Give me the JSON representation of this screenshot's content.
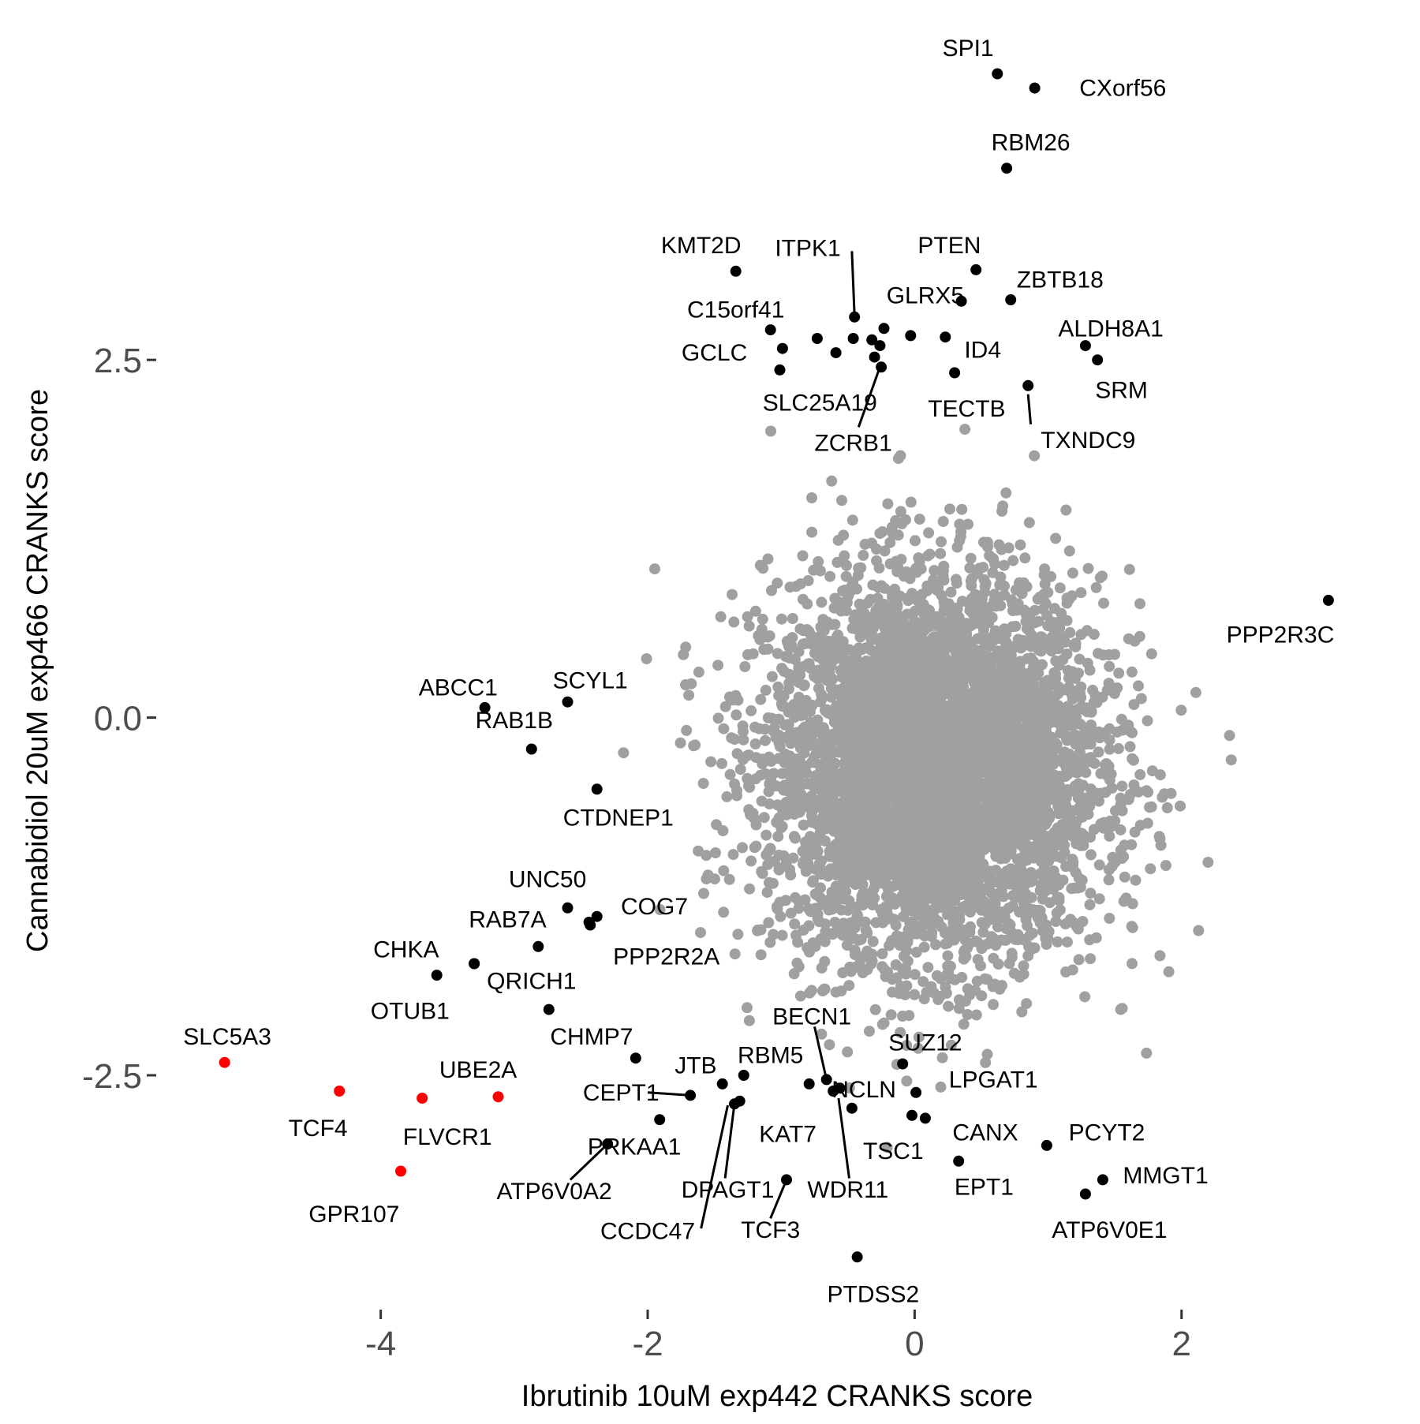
{
  "chart_data": {
    "type": "scatter",
    "xlabel": "Ibrutinib 10uM exp442 CRANKS score",
    "ylabel": "Cannabidiol 20uM exp466 CRANKS score",
    "xlim": [
      -5.7,
      3.55
    ],
    "ylim": [
      -4.11,
      4.85
    ],
    "x_ticks": [
      -4,
      -2,
      0,
      2
    ],
    "x_tick_labels": [
      "-4",
      "-2",
      "0",
      "2"
    ],
    "y_ticks": [
      -2.5,
      0.0,
      2.5
    ],
    "y_tick_labels": [
      "-2.5",
      "0.0",
      "2.5"
    ],
    "grid": false,
    "legend": "none",
    "colors": {
      "background": "#a0a0a0",
      "highlight": "#000000",
      "negative_hit": "#ff0000"
    },
    "background_cloud": {
      "description_x_center": 0.15,
      "description_y_center": -0.35,
      "note": "thousands of gray genes"
    },
    "points": [
      {
        "label": "SPI1",
        "x": 0.62,
        "y": 4.5,
        "color": "black"
      },
      {
        "label": "CXorf56",
        "x": 0.9,
        "y": 4.4,
        "color": "black"
      },
      {
        "label": "RBM26",
        "x": 0.69,
        "y": 3.84,
        "color": "black"
      },
      {
        "label": "KMT2D",
        "x": -1.34,
        "y": 3.12,
        "color": "black"
      },
      {
        "label": "PTEN",
        "x": 0.46,
        "y": 3.13,
        "color": "black"
      },
      {
        "label": "ZBTB18",
        "x": 0.72,
        "y": 2.92,
        "color": "black"
      },
      {
        "label": "GLRX5",
        "x": 0.35,
        "y": 2.91,
        "color": "black"
      },
      {
        "label": "ITPK1",
        "x": -0.45,
        "y": 2.8,
        "color": "black"
      },
      {
        "label": "C15orf41",
        "x": -1.08,
        "y": 2.71,
        "color": "black"
      },
      {
        "label": "GCLC",
        "x": -0.99,
        "y": 2.58,
        "color": "black"
      },
      {
        "label": "ALDH8A1",
        "x": 1.28,
        "y": 2.6,
        "color": "black"
      },
      {
        "label": "SRM",
        "x": 1.37,
        "y": 2.5,
        "color": "black"
      },
      {
        "label": "ID4",
        "x": 0.23,
        "y": 2.66,
        "color": "black"
      },
      {
        "label": "TECTB",
        "x": 0.3,
        "y": 2.41,
        "color": "black"
      },
      {
        "label": "TXNDC9",
        "x": 0.85,
        "y": 2.32,
        "color": "black"
      },
      {
        "label": "SLC25A19",
        "x": -0.25,
        "y": 2.45,
        "color": "black"
      },
      {
        "label": "ZCRB1",
        "x": -0.3,
        "y": 2.52,
        "color": "black"
      },
      {
        "label": "",
        "x": -1.01,
        "y": 2.43,
        "color": "black"
      },
      {
        "label": "",
        "x": -0.73,
        "y": 2.65,
        "color": "black"
      },
      {
        "label": "",
        "x": -0.59,
        "y": 2.55,
        "color": "black"
      },
      {
        "label": "",
        "x": -0.46,
        "y": 2.65,
        "color": "black"
      },
      {
        "label": "",
        "x": -0.23,
        "y": 2.72,
        "color": "black"
      },
      {
        "label": "",
        "x": -0.32,
        "y": 2.64,
        "color": "black"
      },
      {
        "label": "",
        "x": -0.03,
        "y": 2.67,
        "color": "black"
      },
      {
        "label": "",
        "x": -0.26,
        "y": 2.6,
        "color": "black"
      },
      {
        "label": "PPP2R3C",
        "x": 3.1,
        "y": 0.82,
        "color": "black"
      },
      {
        "label": "ABCC1",
        "x": -3.22,
        "y": 0.07,
        "color": "black"
      },
      {
        "label": "SCYL1",
        "x": -2.6,
        "y": 0.11,
        "color": "black"
      },
      {
        "label": "RAB1B",
        "x": -2.87,
        "y": -0.22,
        "color": "black"
      },
      {
        "label": "CTDNEP1",
        "x": -2.38,
        "y": -0.5,
        "color": "black"
      },
      {
        "label": "UNC50",
        "x": -2.6,
        "y": -1.33,
        "color": "black"
      },
      {
        "label": "COG7",
        "x": -2.38,
        "y": -1.39,
        "color": "black"
      },
      {
        "label": "",
        "x": -2.44,
        "y": -1.43,
        "color": "black"
      },
      {
        "label": "RAB7A",
        "x": -2.82,
        "y": -1.6,
        "color": "black"
      },
      {
        "label": "PPP2R2A",
        "x": -2.43,
        "y": -1.45,
        "color": "black"
      },
      {
        "label": "CHKA",
        "x": -3.3,
        "y": -1.72,
        "color": "black"
      },
      {
        "label": "QRICH1",
        "x": -3.3,
        "y": -1.72,
        "color": "black"
      },
      {
        "label": "OTUB1",
        "x": -3.58,
        "y": -1.8,
        "color": "black"
      },
      {
        "label": "CHMP7",
        "x": -2.74,
        "y": -2.04,
        "color": "black"
      },
      {
        "label": "SLC5A3",
        "x": -5.17,
        "y": -2.41,
        "color": "red"
      },
      {
        "label": "TCF4",
        "x": -4.31,
        "y": -2.61,
        "color": "red"
      },
      {
        "label": "FLVCR1",
        "x": -3.69,
        "y": -2.66,
        "color": "red"
      },
      {
        "label": "UBE2A",
        "x": -3.12,
        "y": -2.65,
        "color": "red"
      },
      {
        "label": "GPR107",
        "x": -3.85,
        "y": -3.17,
        "color": "red"
      },
      {
        "label": "JTB",
        "x": -2.09,
        "y": -2.38,
        "color": "black"
      },
      {
        "label": "CEPT1",
        "x": -1.68,
        "y": -2.64,
        "color": "black"
      },
      {
        "label": "PRKAA1",
        "x": -1.91,
        "y": -2.81,
        "color": "black"
      },
      {
        "label": "ATP6V0A2",
        "x": -2.3,
        "y": -2.98,
        "color": "black"
      },
      {
        "label": "RBM5",
        "x": -1.28,
        "y": -2.5,
        "color": "black"
      },
      {
        "label": "",
        "x": -1.44,
        "y": -2.56,
        "color": "black"
      },
      {
        "label": "DPAGT1",
        "x": -1.35,
        "y": -2.7,
        "color": "black"
      },
      {
        "label": "CCDC47",
        "x": -1.31,
        "y": -2.68,
        "color": "black"
      },
      {
        "label": "KAT7",
        "x": -0.79,
        "y": -2.56,
        "color": "black"
      },
      {
        "label": "TCF3",
        "x": -0.96,
        "y": -3.23,
        "color": "black"
      },
      {
        "label": "BECN1",
        "x": -0.66,
        "y": -2.53,
        "color": "black"
      },
      {
        "label": "NCLN",
        "x": -0.56,
        "y": -2.59,
        "color": "black"
      },
      {
        "label": "WDR11",
        "x": -0.61,
        "y": -2.61,
        "color": "black"
      },
      {
        "label": "TSC1",
        "x": -0.47,
        "y": -2.73,
        "color": "black"
      },
      {
        "label": "SUZ12",
        "x": -0.09,
        "y": -2.42,
        "color": "black"
      },
      {
        "label": "LPGAT1",
        "x": 0.01,
        "y": -2.62,
        "color": "black"
      },
      {
        "label": "",
        "x": -0.02,
        "y": -2.78,
        "color": "black"
      },
      {
        "label": "CANX",
        "x": 0.08,
        "y": -2.8,
        "color": "black"
      },
      {
        "label": "EPT1",
        "x": 0.33,
        "y": -3.1,
        "color": "black"
      },
      {
        "label": "PCYT2",
        "x": 0.99,
        "y": -2.99,
        "color": "black"
      },
      {
        "label": "MMGT1",
        "x": 1.41,
        "y": -3.23,
        "color": "black"
      },
      {
        "label": "ATP6V0E1",
        "x": 1.28,
        "y": -3.33,
        "color": "black"
      },
      {
        "label": "PTDSS2",
        "x": -0.43,
        "y": -3.77,
        "color": "black"
      }
    ]
  },
  "labels": [
    {
      "text": "SPI1",
      "x": 0.4,
      "y": 4.68,
      "anchor": "middle"
    },
    {
      "text": "CXorf56",
      "x": 1.56,
      "y": 4.4,
      "anchor": "middle"
    },
    {
      "text": "RBM26",
      "x": 0.87,
      "y": 4.02,
      "anchor": "middle"
    },
    {
      "text": "KMT2D",
      "x": -1.6,
      "y": 3.3,
      "anchor": "middle"
    },
    {
      "text": "ITPK1",
      "x": -0.8,
      "y": 3.28,
      "anchor": "middle"
    },
    {
      "text": "PTEN",
      "x": 0.26,
      "y": 3.3,
      "anchor": "middle"
    },
    {
      "text": "ZBTB18",
      "x": 1.09,
      "y": 3.06,
      "anchor": "middle"
    },
    {
      "text": "GLRX5",
      "x": 0.08,
      "y": 2.95,
      "anchor": "middle"
    },
    {
      "text": "C15orf41",
      "x": -1.34,
      "y": 2.85,
      "anchor": "middle"
    },
    {
      "text": "ALDH8A1",
      "x": 1.47,
      "y": 2.72,
      "anchor": "middle"
    },
    {
      "text": "GCLC",
      "x": -1.5,
      "y": 2.55,
      "anchor": "middle"
    },
    {
      "text": "ID4",
      "x": 0.51,
      "y": 2.57,
      "anchor": "middle"
    },
    {
      "text": "SRM",
      "x": 1.55,
      "y": 2.29,
      "anchor": "middle"
    },
    {
      "text": "SLC25A19",
      "x": -0.71,
      "y": 2.2,
      "anchor": "middle"
    },
    {
      "text": "TECTB",
      "x": 0.39,
      "y": 2.16,
      "anchor": "middle"
    },
    {
      "text": "TXNDC9",
      "x": 1.3,
      "y": 1.94,
      "anchor": "middle"
    },
    {
      "text": "ZCRB1",
      "x": -0.46,
      "y": 1.92,
      "anchor": "middle"
    },
    {
      "text": "PPP2R3C",
      "x": 2.74,
      "y": 0.58,
      "anchor": "middle"
    },
    {
      "text": "ABCC1",
      "x": -3.42,
      "y": 0.21,
      "anchor": "middle"
    },
    {
      "text": "SCYL1",
      "x": -2.43,
      "y": 0.26,
      "anchor": "middle"
    },
    {
      "text": "RAB1B",
      "x": -3.0,
      "y": -0.02,
      "anchor": "middle"
    },
    {
      "text": "CTDNEP1",
      "x": -2.22,
      "y": -0.7,
      "anchor": "middle"
    },
    {
      "text": "UNC50",
      "x": -2.75,
      "y": -1.13,
      "anchor": "middle"
    },
    {
      "text": "COG7",
      "x": -1.95,
      "y": -1.32,
      "anchor": "middle"
    },
    {
      "text": "RAB7A",
      "x": -3.05,
      "y": -1.41,
      "anchor": "middle"
    },
    {
      "text": "PPP2R2A",
      "x": -1.86,
      "y": -1.67,
      "anchor": "middle"
    },
    {
      "text": "CHKA",
      "x": -3.81,
      "y": -1.62,
      "anchor": "middle"
    },
    {
      "text": "QRICH1",
      "x": -2.87,
      "y": -1.84,
      "anchor": "middle"
    },
    {
      "text": "OTUB1",
      "x": -3.78,
      "y": -2.05,
      "anchor": "middle"
    },
    {
      "text": "CHMP7",
      "x": -2.42,
      "y": -2.23,
      "anchor": "middle"
    },
    {
      "text": "SLC5A3",
      "x": -5.15,
      "y": -2.23,
      "anchor": "middle"
    },
    {
      "text": "UBE2A",
      "x": -3.27,
      "y": -2.46,
      "anchor": "middle"
    },
    {
      "text": "TCF4",
      "x": -4.47,
      "y": -2.87,
      "anchor": "middle"
    },
    {
      "text": "FLVCR1",
      "x": -3.5,
      "y": -2.93,
      "anchor": "middle"
    },
    {
      "text": "GPR107",
      "x": -4.2,
      "y": -3.47,
      "anchor": "middle"
    },
    {
      "text": "JTB",
      "x": -1.64,
      "y": -2.43,
      "anchor": "middle"
    },
    {
      "text": "CEPT1",
      "x": -2.2,
      "y": -2.62,
      "anchor": "middle"
    },
    {
      "text": "RBM5",
      "x": -1.08,
      "y": -2.36,
      "anchor": "middle"
    },
    {
      "text": "PRKAA1",
      "x": -2.1,
      "y": -3.0,
      "anchor": "middle"
    },
    {
      "text": "ATP6V0A2",
      "x": -2.7,
      "y": -3.31,
      "anchor": "middle"
    },
    {
      "text": "DPAGT1",
      "x": -1.4,
      "y": -3.3,
      "anchor": "middle"
    },
    {
      "text": "CCDC47",
      "x": -2.0,
      "y": -3.59,
      "anchor": "middle"
    },
    {
      "text": "KAT7",
      "x": -0.95,
      "y": -2.91,
      "anchor": "middle"
    },
    {
      "text": "TCF3",
      "x": -1.08,
      "y": -3.58,
      "anchor": "middle"
    },
    {
      "text": "BECN1",
      "x": -0.77,
      "y": -2.09,
      "anchor": "middle"
    },
    {
      "text": "NCLN",
      "x": -0.38,
      "y": -2.6,
      "anchor": "middle"
    },
    {
      "text": "WDR11",
      "x": -0.5,
      "y": -3.3,
      "anchor": "middle"
    },
    {
      "text": "TSC1",
      "x": -0.16,
      "y": -3.03,
      "anchor": "middle"
    },
    {
      "text": "SUZ12",
      "x": 0.08,
      "y": -2.27,
      "anchor": "middle"
    },
    {
      "text": "LPGAT1",
      "x": 0.59,
      "y": -2.53,
      "anchor": "middle"
    },
    {
      "text": "CANX",
      "x": 0.53,
      "y": -2.9,
      "anchor": "middle"
    },
    {
      "text": "PCYT2",
      "x": 1.44,
      "y": -2.9,
      "anchor": "middle"
    },
    {
      "text": "EPT1",
      "x": 0.52,
      "y": -3.28,
      "anchor": "middle"
    },
    {
      "text": "MMGT1",
      "x": 1.88,
      "y": -3.2,
      "anchor": "middle"
    },
    {
      "text": "ATP6V0E1",
      "x": 1.46,
      "y": -3.58,
      "anchor": "middle"
    },
    {
      "text": "PTDSS2",
      "x": -0.31,
      "y": -4.03,
      "anchor": "middle"
    }
  ],
  "segments": [
    {
      "x1": -0.45,
      "y1": 2.8,
      "x2": -0.47,
      "y2": 3.26
    },
    {
      "x1": -0.26,
      "y1": 2.45,
      "x2": -0.42,
      "y2": 2.03
    },
    {
      "x1": 0.85,
      "y1": 2.26,
      "x2": 0.87,
      "y2": 2.05
    },
    {
      "x1": -1.68,
      "y1": -2.64,
      "x2": -2.0,
      "y2": -2.62
    },
    {
      "x1": -2.3,
      "y1": -2.98,
      "x2": -2.58,
      "y2": -3.23
    },
    {
      "x1": -1.35,
      "y1": -2.7,
      "x2": -1.42,
      "y2": -3.22
    },
    {
      "x1": -1.4,
      "y1": -2.71,
      "x2": -1.6,
      "y2": -3.57
    },
    {
      "x1": -0.96,
      "y1": -3.23,
      "x2": -1.08,
      "y2": -3.5
    },
    {
      "x1": -0.66,
      "y1": -2.53,
      "x2": -0.75,
      "y2": -2.16
    },
    {
      "x1": -0.57,
      "y1": -2.66,
      "x2": -0.49,
      "y2": -3.22
    }
  ]
}
